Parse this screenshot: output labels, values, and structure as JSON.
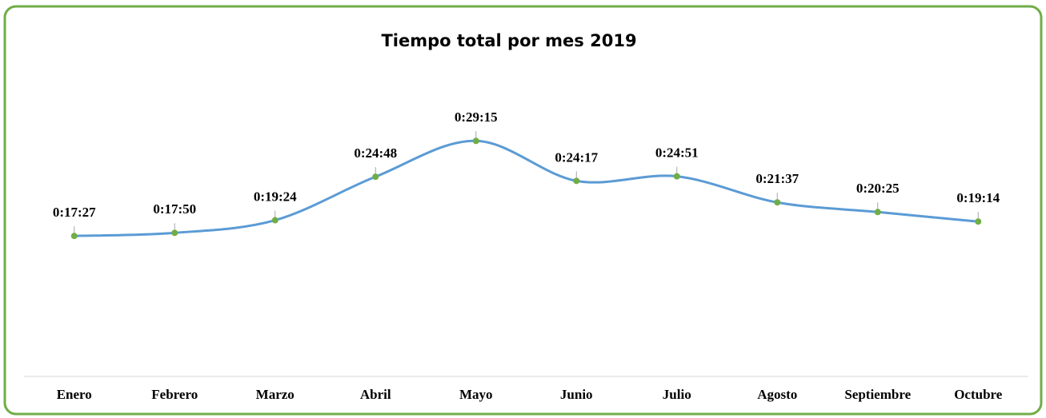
{
  "chart_data": {
    "type": "line",
    "title": "Tiempo total por mes 2019",
    "categories": [
      "Enero",
      "Febrero",
      "Marzo",
      "Abril",
      "Mayo",
      "Junio",
      "Julio",
      "Agosto",
      "Septiembre",
      "Octubre"
    ],
    "series": [
      {
        "color": "#5b9bd5",
        "marker_color": "#70ad47",
        "values": [
          1047,
          1070,
          1164,
          1488,
          1755,
          1457,
          1491,
          1297,
          1225,
          1154
        ],
        "value_labels": [
          "0:17:27",
          "0:17:50",
          "0:19:24",
          "0:24:48",
          "0:29:15",
          "0:24:17",
          "0:24:51",
          "0:21:37",
          "0:20:25",
          "0:19:14"
        ]
      }
    ],
    "ylim": [
      0,
      2400
    ],
    "smooth": true
  }
}
